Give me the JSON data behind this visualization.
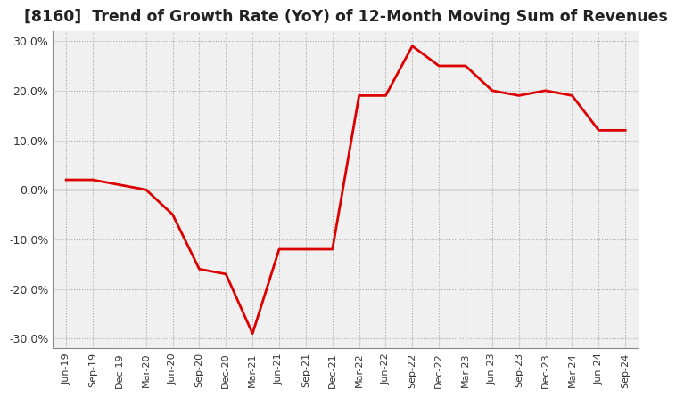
{
  "title": "[8160]  Trend of Growth Rate (YoY) of 12-Month Moving Sum of Revenues",
  "title_fontsize": 12.5,
  "line_color": "#dd0000",
  "line_width": 2.0,
  "plot_bg_color": "#f0f0f0",
  "fig_bg_color": "#ffffff",
  "grid_color": "#aaaaaa",
  "zero_line_color": "#888888",
  "xlabels": [
    "Jun-19",
    "Sep-19",
    "Dec-19",
    "Mar-20",
    "Jun-20",
    "Sep-20",
    "Dec-20",
    "Mar-21",
    "Jun-21",
    "Sep-21",
    "Dec-21",
    "Mar-22",
    "Jun-22",
    "Sep-22",
    "Dec-22",
    "Mar-23",
    "Jun-23",
    "Sep-23",
    "Dec-23",
    "Mar-24",
    "Jun-24",
    "Sep-24"
  ],
  "values": [
    0.02,
    0.02,
    0.01,
    0.0,
    -0.05,
    -0.16,
    -0.17,
    -0.29,
    -0.12,
    -0.12,
    -0.12,
    0.19,
    0.19,
    0.29,
    0.25,
    0.25,
    0.2,
    0.19,
    0.2,
    0.19,
    0.12,
    0.12
  ],
  "ylim": [
    -0.32,
    0.32
  ],
  "yticks": [
    -0.3,
    -0.2,
    -0.1,
    0.0,
    0.1,
    0.2,
    0.3
  ]
}
